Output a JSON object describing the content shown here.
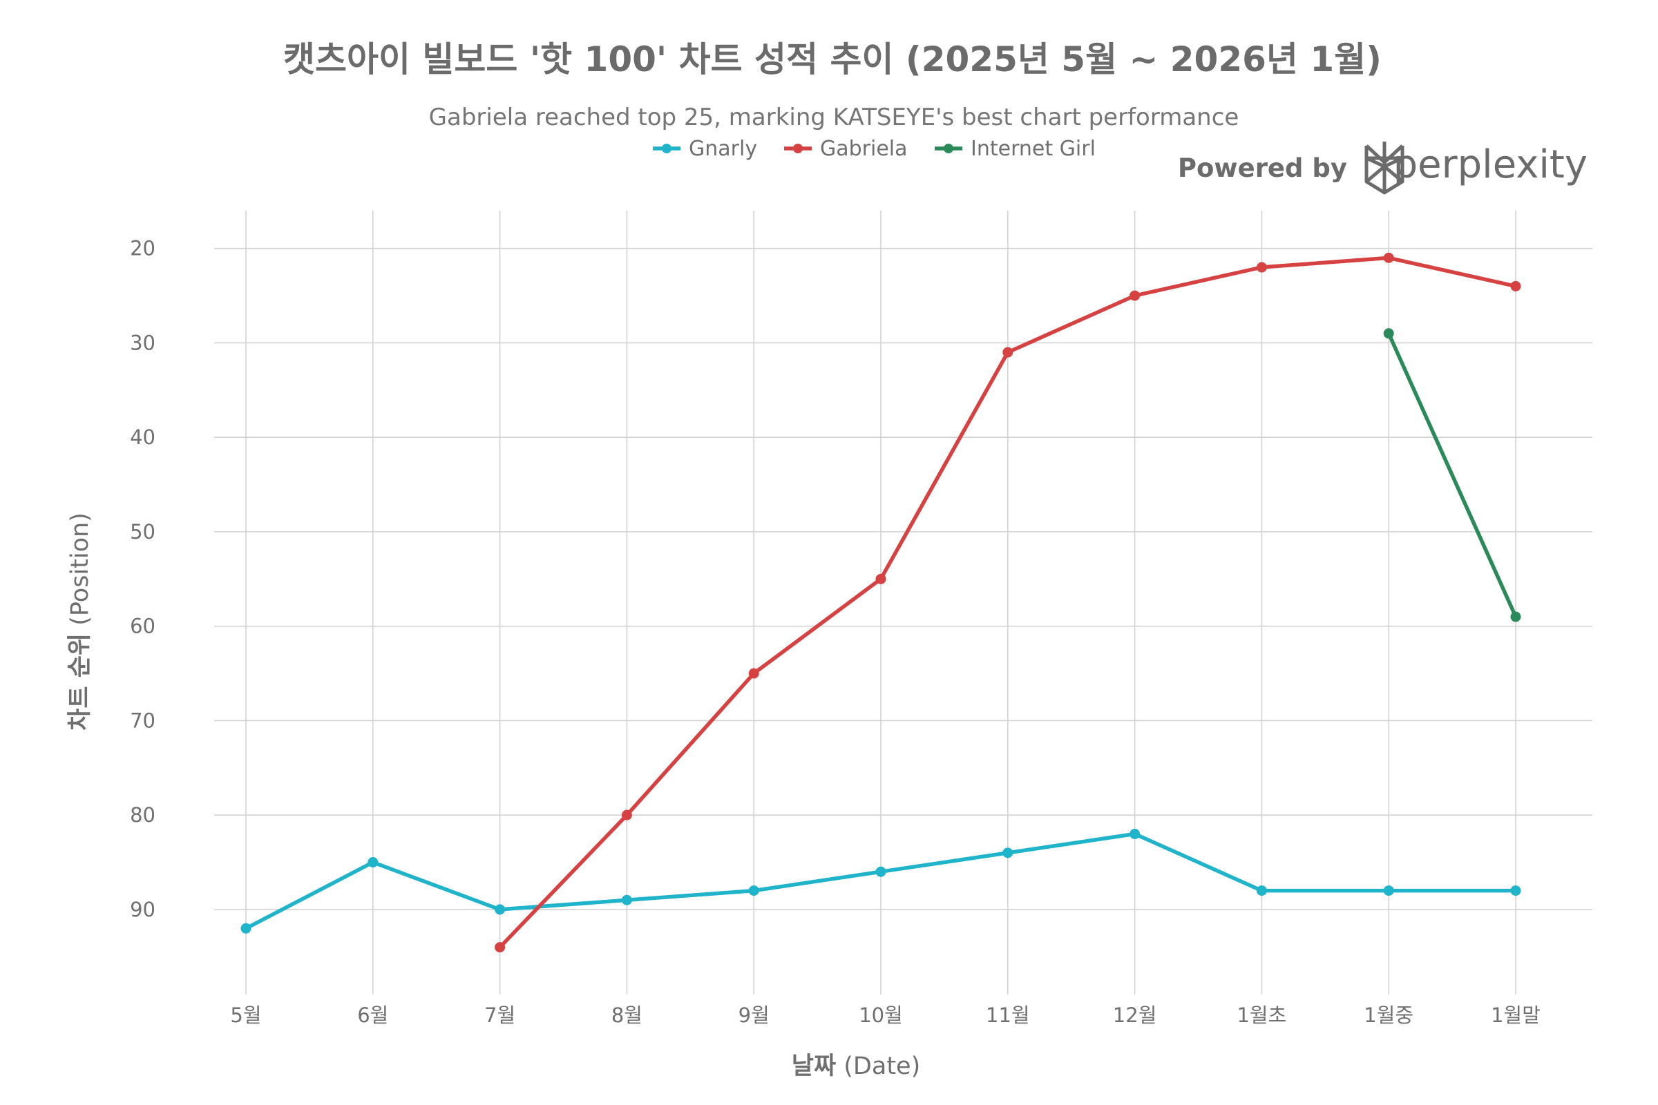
{
  "chart_data": {
    "type": "line",
    "title": "캣츠아이 빌보드 '핫 100' 차트 성적 추이 (2025년 5월 ~ 2026년 1월)",
    "subtitle": "Gabriela reached top 25, marking KATSEYE's best chart performance",
    "xlabel_bold": "날짜",
    "xlabel_rest": " (Date)",
    "ylabel_bold": "차트 순위",
    "ylabel_rest": " (Position)",
    "categories": [
      "5월",
      "6월",
      "7월",
      "8월",
      "9월",
      "10월",
      "11월",
      "12월",
      "1월초",
      "1월중",
      "1월말"
    ],
    "y_reversed": true,
    "ylim": [
      16,
      99
    ],
    "yticks": [
      20,
      30,
      40,
      50,
      60,
      70,
      80,
      90
    ],
    "grid": true,
    "legend_position": "top-center",
    "series": [
      {
        "name": "Gnarly",
        "color": "#1fb4c9",
        "values": [
          92,
          85,
          90,
          89,
          88,
          86,
          84,
          82,
          88,
          88,
          88
        ]
      },
      {
        "name": "Gabriela",
        "color": "#d64242",
        "values": [
          null,
          null,
          94,
          80,
          65,
          55,
          31,
          25,
          22,
          21,
          24
        ]
      },
      {
        "name": "Internet Girl",
        "color": "#2b8a5a",
        "values": [
          null,
          null,
          null,
          null,
          null,
          null,
          null,
          null,
          null,
          29,
          59
        ]
      }
    ]
  },
  "branding": {
    "powered_by": "Powered by",
    "brand_name": "perplexity",
    "logo_icon": "perplexity-logo-icon"
  }
}
